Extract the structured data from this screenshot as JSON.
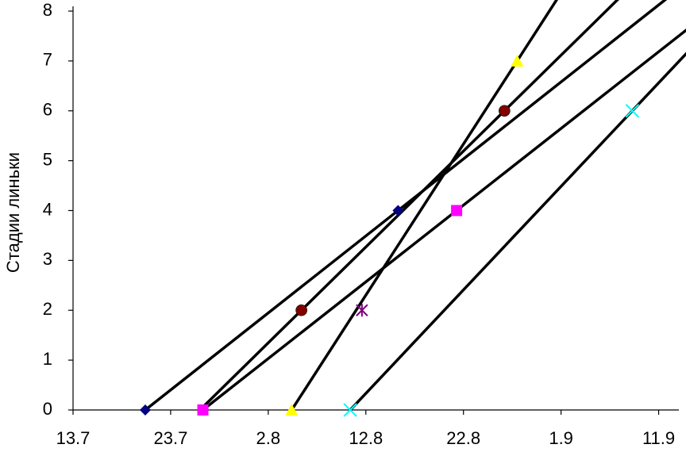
{
  "chart_data": {
    "type": "scatter",
    "y_label": "Стадии линьки",
    "xlim": [
      0,
      61.5
    ],
    "ylim": [
      0,
      8
    ],
    "xticks": [
      {
        "value": 0,
        "label": "13.7"
      },
      {
        "value": 10,
        "label": "23.7"
      },
      {
        "value": 20,
        "label": "2.8"
      },
      {
        "value": 30,
        "label": "12.8"
      },
      {
        "value": 40,
        "label": "22.8"
      },
      {
        "value": 50,
        "label": "1.9"
      },
      {
        "value": 60,
        "label": "11.9"
      }
    ],
    "yticks": [
      0,
      1,
      2,
      3,
      4,
      5,
      6,
      7,
      8
    ],
    "trend_lines": true,
    "series": [
      {
        "color": "#000080",
        "marker": "diamond",
        "x": [
          7.4,
          33.3
        ],
        "values": [
          0,
          4
        ]
      },
      {
        "color": "#ff00ff",
        "marker": "square",
        "x": [
          13.3,
          39.3
        ],
        "values": [
          0,
          4
        ]
      },
      {
        "color": "#800000",
        "marker": "circle",
        "x": [
          23.4,
          44.2
        ],
        "values": [
          2,
          6
        ]
      },
      {
        "color": "#ffff00",
        "marker": "triangle",
        "x": [
          22.4,
          45.5
        ],
        "values": [
          0,
          7
        ]
      },
      {
        "color": "#800080",
        "marker": "asterisk",
        "x": [
          29.6
        ],
        "values": [
          2
        ]
      },
      {
        "color": "#00ffff",
        "marker": "x",
        "x": [
          28.4,
          57.3
        ],
        "values": [
          0,
          6
        ]
      }
    ]
  }
}
